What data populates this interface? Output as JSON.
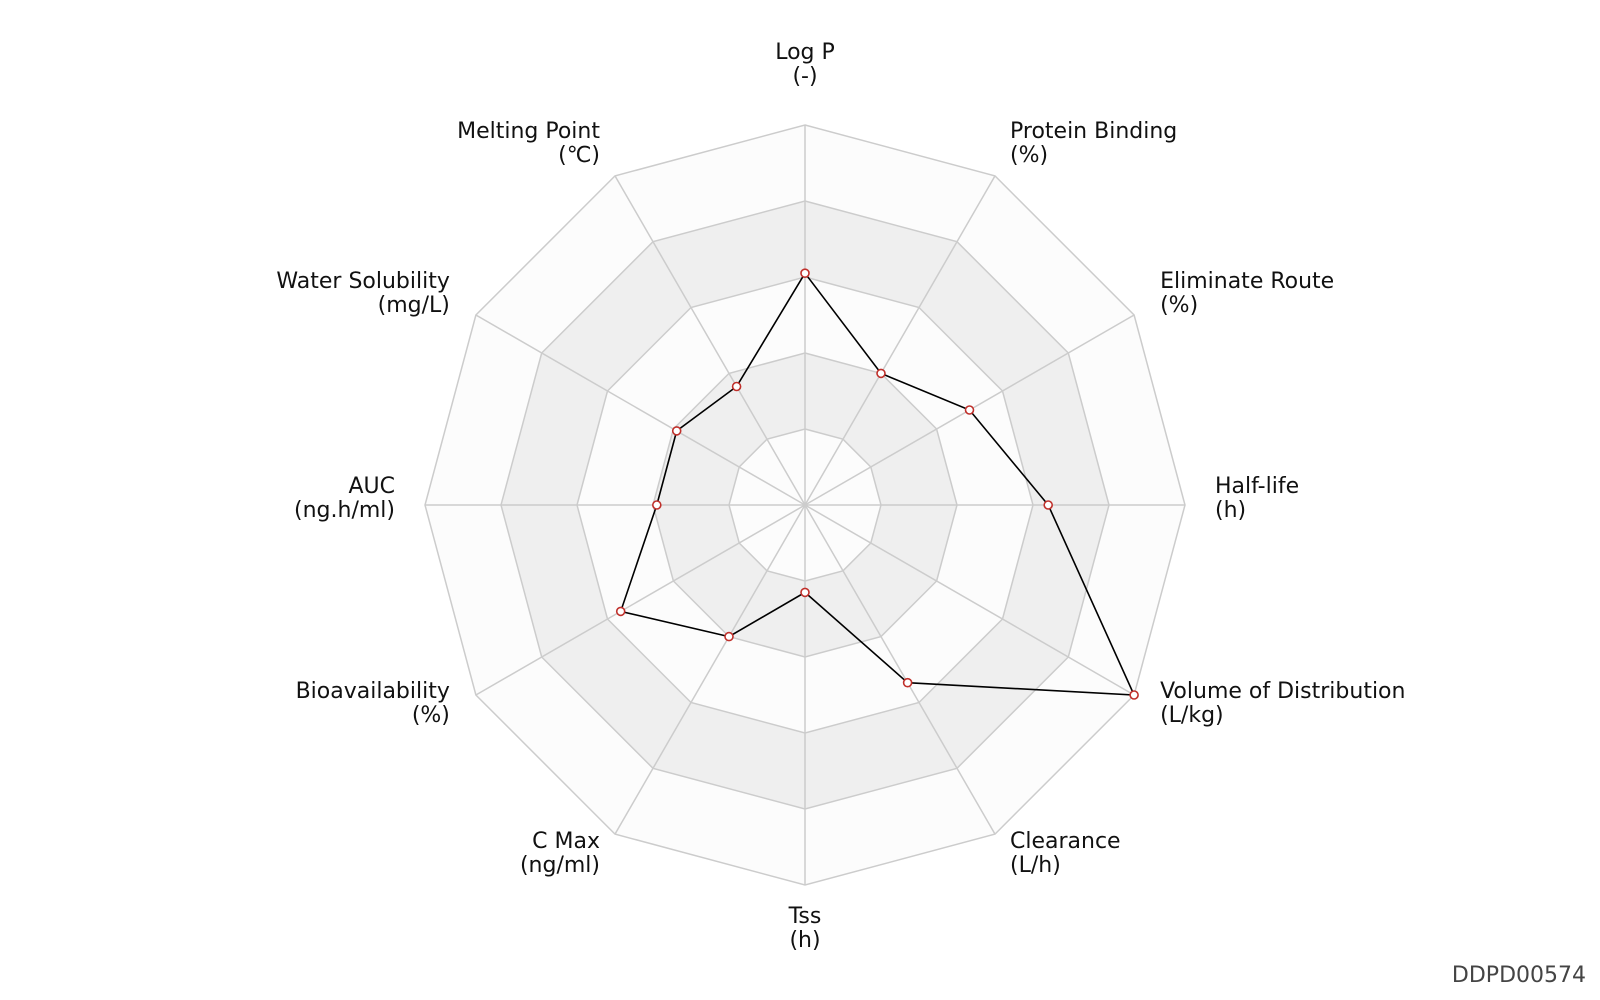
{
  "chart_data": {
    "type": "radar",
    "axes": [
      {
        "name": "Log P",
        "unit": "(-)"
      },
      {
        "name": "Protein Binding",
        "unit": "(%)"
      },
      {
        "name": "Eliminate Route",
        "unit": "(%)"
      },
      {
        "name": "Half-life",
        "unit": "(h)"
      },
      {
        "name": "Volume of Distribution",
        "unit": "(L/kg)"
      },
      {
        "name": "Clearance",
        "unit": "(L/h)"
      },
      {
        "name": "Tss",
        "unit": "(h)"
      },
      {
        "name": "C Max",
        "unit": "(ng/ml)"
      },
      {
        "name": "Bioavailability",
        "unit": "(%)"
      },
      {
        "name": "AUC",
        "unit": "(ng.h/ml)"
      },
      {
        "name": "Water Solubility",
        "unit": "(mg/L)"
      },
      {
        "name": "Melting Point",
        "unit": "(℃)"
      }
    ],
    "values": [
      0.61,
      0.4,
      0.5,
      0.64,
      1.0,
      0.54,
      0.23,
      0.4,
      0.56,
      0.39,
      0.39,
      0.36
    ],
    "rings": 5,
    "range": [
      0,
      1
    ],
    "colors": {
      "series_line": "#000000",
      "marker_stroke": "#c0302b",
      "marker_fill": "#ffffff",
      "grid": "#cccccc",
      "band_dark": "#efefef",
      "band_light": "#fcfcfc"
    }
  },
  "watermark": "DDPD00574"
}
